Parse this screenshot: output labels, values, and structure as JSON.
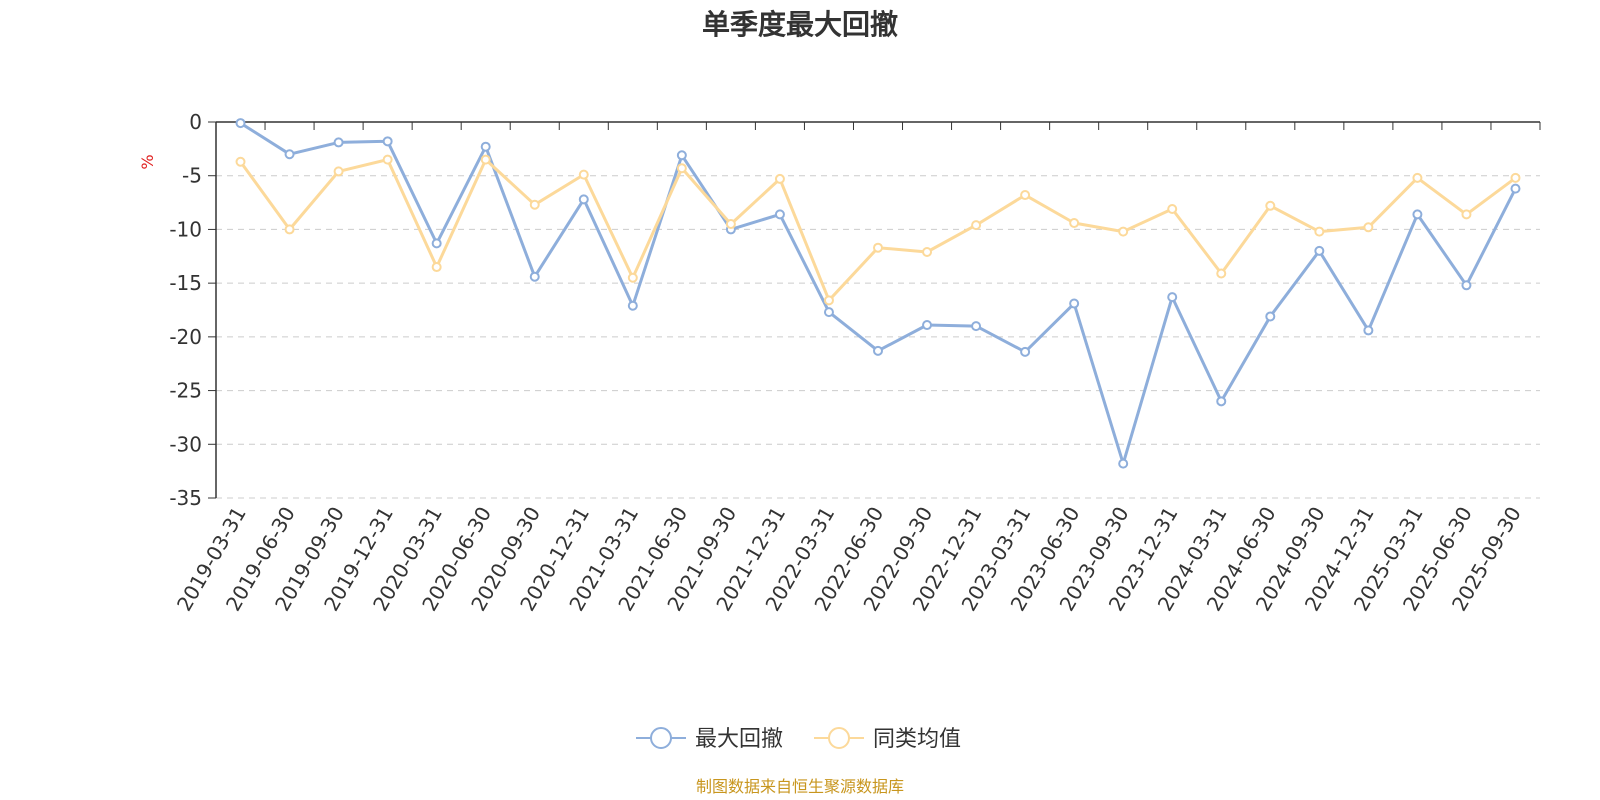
{
  "source_note": "制图数据来自恒生聚源数据库",
  "colors": {
    "series_1": "#8eaedb",
    "series_2": "#fcd99a",
    "source": "#c8961e",
    "unit": "#e02020",
    "grid": "#cccccc",
    "axis": "#333333"
  },
  "chart_data": {
    "type": "line",
    "title": "单季度最大回撤",
    "ylabel": "%",
    "xlabel": "",
    "ylim": [
      -35,
      0
    ],
    "yticks": [
      0,
      -5,
      -10,
      -15,
      -20,
      -25,
      -30,
      -35
    ],
    "grid": "horizontal-dashed",
    "legend_position": "bottom-center",
    "categories": [
      "2019-03-31",
      "2019-06-30",
      "2019-09-30",
      "2019-12-31",
      "2020-03-31",
      "2020-06-30",
      "2020-09-30",
      "2020-12-31",
      "2021-03-31",
      "2021-06-30",
      "2021-09-30",
      "2021-12-31",
      "2022-03-31",
      "2022-06-30",
      "2022-09-30",
      "2022-12-31",
      "2023-03-31",
      "2023-06-30",
      "2023-09-30",
      "2023-12-31",
      "2024-03-31",
      "2024-06-30",
      "2024-09-30",
      "2024-12-31",
      "2025-03-31",
      "2025-06-30",
      "2025-09-30"
    ],
    "series": [
      {
        "name": "最大回撤",
        "color": "#8eaedb",
        "values": [
          -0.1,
          -3.0,
          -1.9,
          -1.8,
          -11.3,
          -2.3,
          -14.4,
          -7.2,
          -17.1,
          -3.1,
          -10.0,
          -8.6,
          -17.7,
          -21.3,
          -18.9,
          -19.0,
          -21.4,
          -16.9,
          -31.8,
          -16.3,
          -26.0,
          -18.1,
          -12.0,
          -19.4,
          -8.6,
          -15.2,
          -6.2
        ]
      },
      {
        "name": "同类均值",
        "color": "#fcd99a",
        "values": [
          -3.7,
          -10.0,
          -4.6,
          -3.5,
          -13.5,
          -3.5,
          -7.7,
          -4.9,
          -14.5,
          -4.3,
          -9.5,
          -5.3,
          -16.6,
          -11.7,
          -12.1,
          -9.6,
          -6.8,
          -9.4,
          -10.2,
          -8.1,
          -14.1,
          -7.8,
          -10.2,
          -9.8,
          -5.2,
          -8.6,
          -5.2
        ]
      }
    ]
  }
}
